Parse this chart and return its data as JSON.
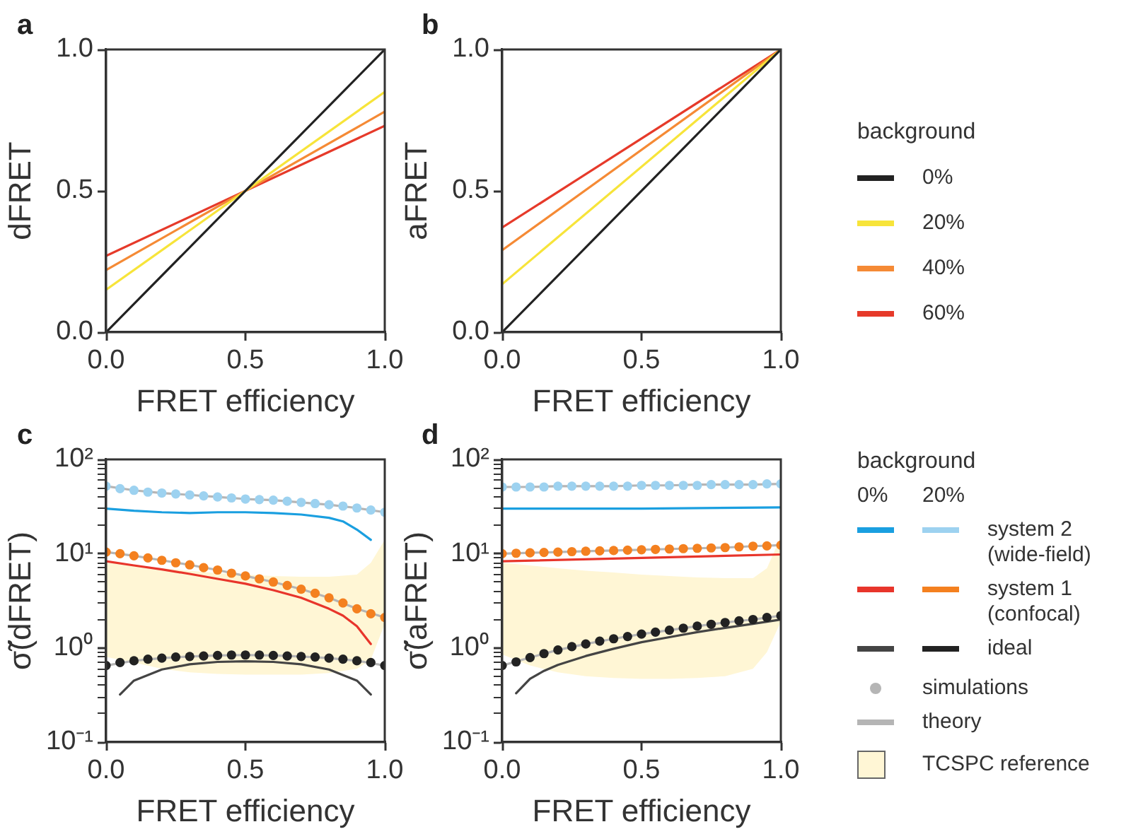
{
  "chart_data": [
    {
      "type": "line",
      "title": "a",
      "xlabel": "FRET efficiency",
      "ylabel": "dFRET",
      "xlim": [
        0,
        1
      ],
      "ylim": [
        0,
        1
      ],
      "xticks": [
        {
          "value": 0,
          "label": "0.0"
        },
        {
          "value": 0.5,
          "label": "0.5"
        },
        {
          "value": 1,
          "label": "1.0"
        }
      ],
      "yticks": [
        {
          "value": 0,
          "label": "0.0"
        },
        {
          "value": 0.5,
          "label": "0.5"
        },
        {
          "value": 1,
          "label": "1.0"
        }
      ],
      "series": [
        {
          "color": "#222222",
          "x": [
            0,
            1
          ],
          "values": [
            0,
            1
          ]
        },
        {
          "color": "#f7e43a",
          "x": [
            0,
            1
          ],
          "values": [
            0.15,
            0.85
          ]
        },
        {
          "color": "#f58a35",
          "x": [
            0,
            1
          ],
          "values": [
            0.22,
            0.78
          ]
        },
        {
          "color": "#e63a2a",
          "x": [
            0,
            1
          ],
          "values": [
            0.27,
            0.73
          ]
        }
      ]
    },
    {
      "type": "line",
      "title": "b",
      "xlabel": "FRET efficiency",
      "ylabel": "aFRET",
      "legend_title": "background",
      "legend": "right",
      "xlim": [
        0,
        1
      ],
      "ylim": [
        0,
        1
      ],
      "xticks": [
        {
          "value": 0,
          "label": "0.0"
        },
        {
          "value": 0.5,
          "label": "0.5"
        },
        {
          "value": 1,
          "label": "1.0"
        }
      ],
      "yticks": [
        {
          "value": 0,
          "label": "0.0"
        },
        {
          "value": 0.5,
          "label": "0.5"
        },
        {
          "value": 1,
          "label": "1.0"
        }
      ],
      "series": [
        {
          "name": "0%",
          "color": "#222222",
          "x": [
            0,
            1
          ],
          "values": [
            0,
            1
          ]
        },
        {
          "name": "20%",
          "color": "#f7e43a",
          "x": [
            0,
            1
          ],
          "values": [
            0.17,
            1
          ]
        },
        {
          "name": "40%",
          "color": "#f58a35",
          "x": [
            0,
            1
          ],
          "values": [
            0.29,
            1
          ]
        },
        {
          "name": "60%",
          "color": "#e63a2a",
          "x": [
            0,
            1
          ],
          "values": [
            0.37,
            1
          ]
        }
      ]
    },
    {
      "type": "line",
      "title": "c",
      "xlabel": "FRET efficiency",
      "ylabel": "σ̃(dFRET)",
      "log": "y",
      "xlim": [
        0,
        1
      ],
      "ylim": [
        0.1,
        100
      ],
      "xticks": [
        {
          "value": 0,
          "label": "0.0"
        },
        {
          "value": 0.5,
          "label": "0.5"
        },
        {
          "value": 1,
          "label": "1.0"
        }
      ],
      "yticks": [
        {
          "value": 0.1,
          "label": "10⁻¹"
        },
        {
          "value": 0.2,
          "label": null
        },
        {
          "value": 0.3,
          "label": null
        },
        {
          "value": 0.4,
          "label": null
        },
        {
          "value": 0.5,
          "label": null
        },
        {
          "value": 0.6,
          "label": null
        },
        {
          "value": 0.7,
          "label": null
        },
        {
          "value": 0.8,
          "label": null
        },
        {
          "value": 0.9,
          "label": null
        },
        {
          "value": 1,
          "label": "10⁰"
        },
        {
          "value": 2,
          "label": null
        },
        {
          "value": 3,
          "label": null
        },
        {
          "value": 4,
          "label": null
        },
        {
          "value": 5,
          "label": null
        },
        {
          "value": 6,
          "label": null
        },
        {
          "value": 7,
          "label": null
        },
        {
          "value": 8,
          "label": null
        },
        {
          "value": 9,
          "label": null
        },
        {
          "value": 10,
          "label": "10¹"
        },
        {
          "value": 20,
          "label": null
        },
        {
          "value": 30,
          "label": null
        },
        {
          "value": 40,
          "label": null
        },
        {
          "value": 50,
          "label": null
        },
        {
          "value": 60,
          "label": null
        },
        {
          "value": 70,
          "label": null
        },
        {
          "value": 80,
          "label": null
        },
        {
          "value": 90,
          "label": null
        },
        {
          "value": 100,
          "label": "10²"
        }
      ],
      "series": [
        {
          "color": "#1a9fe0",
          "x": [
            0,
            0.1,
            0.2,
            0.3,
            0.4,
            0.5,
            0.6,
            0.7,
            0.8,
            0.85,
            0.9,
            0.95
          ],
          "values": [
            30,
            28.5,
            27.5,
            27,
            27.5,
            27.5,
            27,
            26,
            24,
            22,
            18,
            14
          ]
        },
        {
          "color": "#e8352b",
          "x": [
            0,
            0.1,
            0.2,
            0.3,
            0.4,
            0.5,
            0.6,
            0.7,
            0.8,
            0.85,
            0.9,
            0.95
          ],
          "values": [
            8.3,
            7.5,
            6.8,
            6.1,
            5.4,
            4.8,
            4.1,
            3.4,
            2.6,
            2.2,
            1.7,
            1.1
          ]
        },
        {
          "color": "#444444",
          "x": [
            0.05,
            0.1,
            0.2,
            0.3,
            0.4,
            0.5,
            0.6,
            0.7,
            0.8,
            0.9,
            0.95
          ],
          "values": [
            0.32,
            0.45,
            0.59,
            0.67,
            0.71,
            0.72,
            0.71,
            0.67,
            0.59,
            0.45,
            0.32
          ]
        },
        {
          "type": "scatter",
          "marker": "circle",
          "color": "#9dd2f0",
          "x": [
            0,
            0.05,
            0.1,
            0.15,
            0.2,
            0.25,
            0.3,
            0.35,
            0.4,
            0.45,
            0.5,
            0.55,
            0.6,
            0.65,
            0.7,
            0.75,
            0.8,
            0.85,
            0.9,
            0.95,
            1
          ],
          "values": [
            52,
            49,
            47,
            45,
            44,
            43,
            42,
            41,
            40,
            39,
            38,
            37.5,
            37,
            36,
            35,
            34,
            33,
            32,
            30.5,
            29,
            27.5
          ]
        },
        {
          "type": "scatter",
          "marker": "circle",
          "color": "#f4801f",
          "x": [
            0,
            0.05,
            0.1,
            0.15,
            0.2,
            0.25,
            0.3,
            0.35,
            0.4,
            0.45,
            0.5,
            0.55,
            0.6,
            0.65,
            0.7,
            0.75,
            0.8,
            0.85,
            0.9,
            0.95,
            1
          ],
          "values": [
            10.4,
            10,
            9.5,
            9,
            8.5,
            8,
            7.6,
            7.1,
            6.7,
            6.2,
            5.8,
            5.4,
            5,
            4.6,
            4.2,
            3.8,
            3.4,
            3,
            2.6,
            2.3,
            2.1
          ]
        },
        {
          "type": "scatter",
          "marker": "circle",
          "color": "#222222",
          "x": [
            0,
            0.05,
            0.1,
            0.15,
            0.2,
            0.25,
            0.3,
            0.35,
            0.4,
            0.45,
            0.5,
            0.55,
            0.6,
            0.65,
            0.7,
            0.75,
            0.8,
            0.85,
            0.9,
            0.95,
            1
          ],
          "values": [
            0.65,
            0.7,
            0.73,
            0.76,
            0.78,
            0.8,
            0.81,
            0.82,
            0.83,
            0.84,
            0.84,
            0.84,
            0.83,
            0.82,
            0.81,
            0.8,
            0.78,
            0.76,
            0.73,
            0.7,
            0.65
          ]
        },
        {
          "color": "#b5b5b5",
          "x": [
            0,
            0.1,
            0.2,
            0.3,
            0.4,
            0.5,
            0.6,
            0.7,
            0.8,
            0.9,
            1
          ],
          "values": [
            52,
            47,
            44,
            42,
            40,
            38,
            37,
            35,
            33,
            30.5,
            27.5
          ]
        },
        {
          "color": "#b5b5b5",
          "x": [
            0,
            0.1,
            0.2,
            0.3,
            0.4,
            0.5,
            0.6,
            0.7,
            0.8,
            0.9,
            1
          ],
          "values": [
            10.4,
            9.5,
            8.5,
            7.6,
            6.7,
            5.8,
            5,
            4.2,
            3.4,
            2.6,
            2.1
          ]
        },
        {
          "color": "#b5b5b5",
          "x": [
            0,
            0.1,
            0.2,
            0.3,
            0.4,
            0.5,
            0.6,
            0.7,
            0.8,
            0.9,
            1
          ],
          "values": [
            0.65,
            0.73,
            0.78,
            0.81,
            0.83,
            0.84,
            0.83,
            0.81,
            0.78,
            0.73,
            0.65
          ]
        },
        {
          "color": "#fff6d5",
          "x": [
            0,
            0.1,
            0.2,
            0.3,
            0.4,
            0.5,
            0.6,
            0.7,
            0.8,
            0.9,
            0.95,
            1
          ],
          "values": [
            null,
            null,
            null,
            null,
            null,
            null,
            null,
            null,
            null,
            null,
            null,
            null
          ],
          "upper": [
            8,
            7.5,
            7,
            6.6,
            6.2,
            6,
            5.8,
            5.7,
            5.7,
            6,
            8,
            14
          ],
          "lower": [
            0.8,
            0.7,
            0.6,
            0.55,
            0.53,
            0.52,
            0.52,
            0.52,
            0.54,
            0.6,
            0.75,
            1.8
          ]
        }
      ]
    },
    {
      "type": "line",
      "title": "d",
      "xlabel": "FRET efficiency",
      "ylabel": "σ̃(aFRET)",
      "log": "y",
      "legend_title": "background",
      "legend": "right",
      "annotations": [
        "0%",
        "20%",
        "simulations"
      ],
      "xlim": [
        0,
        1
      ],
      "ylim": [
        0.1,
        100
      ],
      "xticks": [
        {
          "value": 0,
          "label": "0.0"
        },
        {
          "value": 0.5,
          "label": "0.5"
        },
        {
          "value": 1,
          "label": "1.0"
        }
      ],
      "yticks": [
        {
          "value": 0.1,
          "label": "10⁻¹"
        },
        {
          "value": 0.2,
          "label": null
        },
        {
          "value": 0.3,
          "label": null
        },
        {
          "value": 0.4,
          "label": null
        },
        {
          "value": 0.5,
          "label": null
        },
        {
          "value": 0.6,
          "label": null
        },
        {
          "value": 0.7,
          "label": null
        },
        {
          "value": 0.8,
          "label": null
        },
        {
          "value": 0.9,
          "label": null
        },
        {
          "value": 1,
          "label": "10⁰"
        },
        {
          "value": 2,
          "label": null
        },
        {
          "value": 3,
          "label": null
        },
        {
          "value": 4,
          "label": null
        },
        {
          "value": 5,
          "label": null
        },
        {
          "value": 6,
          "label": null
        },
        {
          "value": 7,
          "label": null
        },
        {
          "value": 8,
          "label": null
        },
        {
          "value": 9,
          "label": null
        },
        {
          "value": 10,
          "label": "10¹"
        },
        {
          "value": 20,
          "label": null
        },
        {
          "value": 30,
          "label": null
        },
        {
          "value": 40,
          "label": null
        },
        {
          "value": 50,
          "label": null
        },
        {
          "value": 60,
          "label": null
        },
        {
          "value": 70,
          "label": null
        },
        {
          "value": 80,
          "label": null
        },
        {
          "value": 90,
          "label": null
        },
        {
          "value": 100,
          "label": "10²"
        }
      ],
      "series": [
        {
          "color": "#1a9fe0",
          "x": [
            0,
            0.5,
            1
          ],
          "values": [
            30,
            30,
            31
          ]
        },
        {
          "color": "#e8352b",
          "x": [
            0,
            0.5,
            1
          ],
          "values": [
            8.3,
            9,
            9.8
          ]
        },
        {
          "color": "#444444",
          "x": [
            0.05,
            0.1,
            0.15,
            0.2,
            0.3,
            0.4,
            0.5,
            0.6,
            0.7,
            0.8,
            0.9,
            1
          ],
          "values": [
            0.33,
            0.47,
            0.57,
            0.66,
            0.82,
            0.98,
            1.15,
            1.3,
            1.47,
            1.63,
            1.8,
            2
          ]
        },
        {
          "type": "scatter",
          "marker": "circle",
          "name": "system 2 (wide-field)",
          "color": "#9dd2f0",
          "x": [
            0,
            0.05,
            0.1,
            0.15,
            0.2,
            0.25,
            0.3,
            0.35,
            0.4,
            0.45,
            0.5,
            0.55,
            0.6,
            0.65,
            0.7,
            0.75,
            0.8,
            0.85,
            0.9,
            0.95,
            1
          ],
          "values": [
            51,
            51,
            51,
            51,
            52,
            52,
            52,
            52,
            52,
            52,
            53,
            53,
            53,
            53,
            53,
            54,
            54,
            54,
            54,
            55,
            55
          ]
        },
        {
          "type": "scatter",
          "marker": "circle",
          "name": "system 1 (confocal)",
          "color": "#f4801f",
          "x": [
            0,
            0.05,
            0.1,
            0.15,
            0.2,
            0.25,
            0.3,
            0.35,
            0.4,
            0.45,
            0.5,
            0.55,
            0.6,
            0.65,
            0.7,
            0.75,
            0.8,
            0.85,
            0.9,
            0.95,
            1
          ],
          "values": [
            10,
            10.1,
            10.2,
            10.3,
            10.4,
            10.5,
            10.6,
            10.7,
            10.8,
            10.9,
            11,
            11.1,
            11.2,
            11.3,
            11.4,
            11.5,
            11.6,
            11.8,
            12,
            12.1,
            12.3
          ]
        },
        {
          "type": "scatter",
          "marker": "circle",
          "name": "ideal",
          "color": "#222222",
          "x": [
            0,
            0.05,
            0.1,
            0.15,
            0.2,
            0.25,
            0.3,
            0.35,
            0.4,
            0.45,
            0.5,
            0.55,
            0.6,
            0.65,
            0.7,
            0.75,
            0.8,
            0.85,
            0.9,
            0.95,
            1
          ],
          "values": [
            0.65,
            0.71,
            0.79,
            0.87,
            0.95,
            1.03,
            1.1,
            1.18,
            1.25,
            1.32,
            1.4,
            1.47,
            1.54,
            1.62,
            1.7,
            1.78,
            1.86,
            1.94,
            2,
            2.1,
            2.2
          ]
        },
        {
          "name": "theory",
          "color": "#b5b5b5",
          "x": [
            0,
            0.1,
            0.2,
            0.3,
            0.4,
            0.5,
            0.6,
            0.7,
            0.8,
            0.9,
            1
          ],
          "values": [
            51,
            51,
            52,
            52,
            52,
            53,
            53,
            54,
            54,
            54,
            55
          ]
        },
        {
          "color": "#b5b5b5",
          "x": [
            0,
            0.1,
            0.2,
            0.3,
            0.4,
            0.5,
            0.6,
            0.7,
            0.8,
            0.9,
            1
          ],
          "values": [
            10,
            10.2,
            10.4,
            10.6,
            10.8,
            11,
            11.2,
            11.4,
            11.6,
            12,
            12.3
          ]
        },
        {
          "color": "#b5b5b5",
          "x": [
            0,
            0.1,
            0.2,
            0.3,
            0.4,
            0.5,
            0.6,
            0.7,
            0.8,
            0.9,
            1
          ],
          "values": [
            0.65,
            0.79,
            0.95,
            1.1,
            1.25,
            1.4,
            1.54,
            1.7,
            1.86,
            2,
            2.2
          ]
        },
        {
          "name": "TCSPC reference",
          "color": "#fff6d5",
          "x": [
            0,
            0.1,
            0.2,
            0.3,
            0.4,
            0.5,
            0.6,
            0.7,
            0.8,
            0.9,
            0.95,
            1
          ],
          "values": [
            null,
            null,
            null,
            null,
            null,
            null,
            null,
            null,
            null,
            null,
            null,
            null
          ],
          "upper": [
            8,
            7.5,
            7,
            6.6,
            6.3,
            6,
            5.8,
            5.6,
            5.5,
            5.5,
            7,
            15
          ],
          "lower": [
            0.85,
            0.65,
            0.55,
            0.5,
            0.48,
            0.47,
            0.47,
            0.48,
            0.5,
            0.6,
            0.9,
            1.9
          ]
        }
      ]
    }
  ]
}
